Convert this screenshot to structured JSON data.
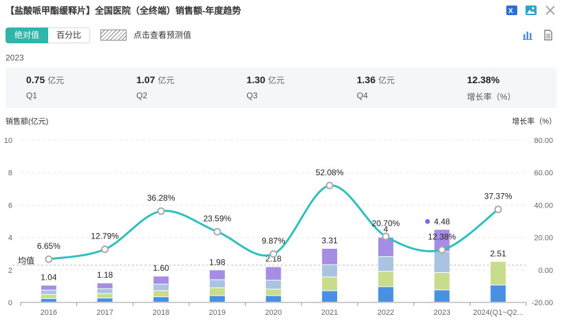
{
  "header": {
    "title": "【盐酸哌甲酯缓释片】全国医院（全终端）销售额-年度趋势",
    "icons": [
      "excel-export-icon",
      "image-export-icon",
      "close-icon"
    ]
  },
  "toggle": {
    "absolute_label": "绝对值",
    "percent_label": "百分比"
  },
  "forecast": {
    "label": "点击查看预测值"
  },
  "year_label": "2023",
  "stats": [
    {
      "value": "0.75",
      "unit": "亿元",
      "label": "Q1"
    },
    {
      "value": "1.07",
      "unit": "亿元",
      "label": "Q2"
    },
    {
      "value": "1.30",
      "unit": "亿元",
      "label": "Q3"
    },
    {
      "value": "1.36",
      "unit": "亿元",
      "label": "Q4"
    },
    {
      "value": "12.38%",
      "unit": "",
      "label": "增长率（%）"
    }
  ],
  "colors": {
    "accent": "#2fb5aa",
    "q1": "#4a90e2",
    "q2": "#c9dc8c",
    "q3": "#a8c4e0",
    "q4": "#a58de3",
    "line": "#2fbfbf"
  },
  "chart_data": {
    "type": "bar",
    "ylabel": "销售额(亿元)",
    "y2label": "增长率（%）",
    "ylim": [
      0,
      10
    ],
    "y2lim": [
      -20,
      80
    ],
    "y_ticks": [
      "0",
      "2",
      "4",
      "6",
      "8",
      "10"
    ],
    "y2_ticks": [
      "-20.00",
      "0.00",
      "20.00",
      "40.00",
      "60.00",
      "80.00"
    ],
    "categories": [
      "2016",
      "2017",
      "2018",
      "2019",
      "2020",
      "2021",
      "2022",
      "2023",
      "2024(Q1~Q2..."
    ],
    "totals": [
      1.04,
      1.18,
      1.6,
      1.98,
      2.18,
      3.31,
      4.0,
      4.48,
      2.51
    ],
    "total_labels": [
      "1.04",
      "1.18",
      "1.60",
      "1.98",
      "2.18",
      "3.31",
      "4",
      "4.48",
      "2.51"
    ],
    "series": [
      {
        "name": "Q1",
        "values": [
          0.22,
          0.25,
          0.33,
          0.4,
          0.4,
          0.7,
          0.95,
          0.75,
          1.05
        ]
      },
      {
        "name": "Q2",
        "values": [
          0.25,
          0.28,
          0.38,
          0.48,
          0.4,
          0.85,
          0.95,
          1.07,
          1.46
        ]
      },
      {
        "name": "Q3",
        "values": [
          0.27,
          0.3,
          0.4,
          0.5,
          0.55,
          0.76,
          0.9,
          1.3,
          0
        ]
      },
      {
        "name": "Q4",
        "values": [
          0.3,
          0.35,
          0.49,
          0.6,
          0.83,
          1.0,
          1.2,
          1.36,
          0
        ]
      }
    ],
    "growth": {
      "name": "增长率",
      "values": [
        6.65,
        12.79,
        36.28,
        23.59,
        9.87,
        52.08,
        20.7,
        12.38,
        37.37
      ],
      "labels": [
        "6.65%",
        "12.79%",
        "36.28%",
        "23.59%",
        "9.87%",
        "52.08%",
        "20.70%",
        "12.38%",
        "37.37%"
      ]
    },
    "mean_label": "均值",
    "mean_value": 2.3,
    "grid": true
  }
}
